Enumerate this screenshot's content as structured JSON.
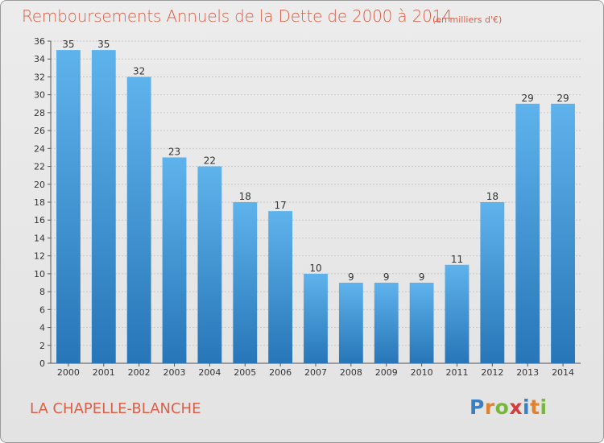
{
  "header": {
    "title": "Remboursements Annuels de la Dette de 2000 à 2014",
    "subtitle": "(en milliers d'€)"
  },
  "footer": {
    "town": "LA CHAPELLE-BLANCHE",
    "brand": "Proxiti",
    "brand_colors": [
      "#3a7fc2",
      "#e0822e",
      "#77b83a",
      "#d83a3a",
      "#3a7fc2",
      "#e0822e",
      "#77b83a"
    ]
  },
  "colors": {
    "bar_light": "#5fb3ec",
    "bar_dark": "#2776b8",
    "text_accent": "#d9614a"
  },
  "chart_data": {
    "type": "bar",
    "title": "Remboursements Annuels de la Dette de 2000 à 2014",
    "subtitle": "(en milliers d'€)",
    "xlabel": "",
    "ylabel": "",
    "categories": [
      "2000",
      "2001",
      "2002",
      "2003",
      "2004",
      "2005",
      "2006",
      "2007",
      "2008",
      "2009",
      "2010",
      "2011",
      "2012",
      "2013",
      "2014"
    ],
    "values": [
      35,
      35,
      32,
      23,
      22,
      18,
      17,
      10,
      9,
      9,
      9,
      11,
      18,
      29,
      29
    ],
    "ylim": [
      0,
      36
    ],
    "yticks": [
      0,
      2,
      4,
      6,
      8,
      10,
      12,
      14,
      16,
      18,
      20,
      22,
      24,
      26,
      28,
      30,
      32,
      34,
      36
    ],
    "grid": true
  }
}
